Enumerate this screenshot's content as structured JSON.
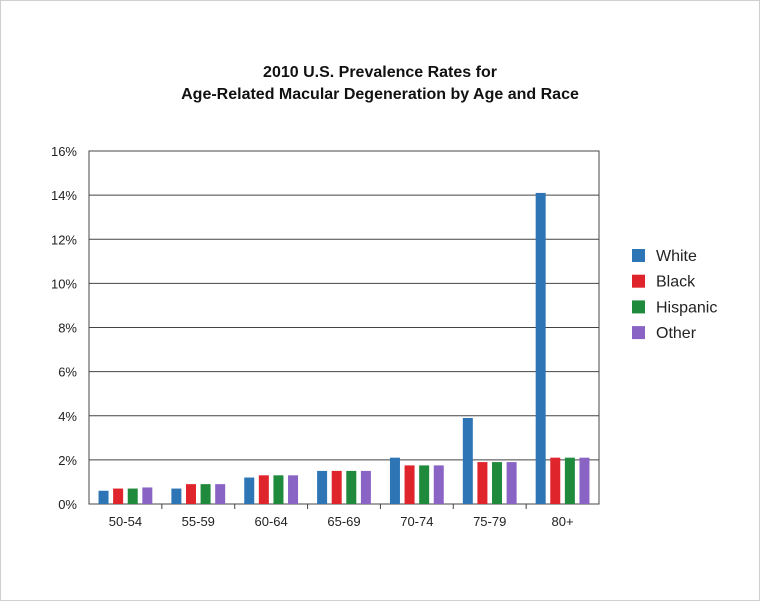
{
  "chart_data": {
    "type": "bar",
    "title_line1": "2010 U.S. Prevalence Rates for",
    "title_line2": "Age-Related Macular Degeneration by Age and Race",
    "xlabel": "",
    "ylabel": "",
    "categories": [
      "50-54",
      "55-59",
      "60-64",
      "65-69",
      "70-74",
      "75-79",
      "80+"
    ],
    "y_ticks": [
      "0%",
      "2%",
      "4%",
      "6%",
      "8%",
      "10%",
      "12%",
      "14%",
      "16%"
    ],
    "ylim": [
      0,
      16
    ],
    "grid": true,
    "legend_position": "right",
    "series": [
      {
        "name": "White",
        "color": "#2e75b6",
        "values": [
          0.6,
          0.7,
          1.2,
          1.5,
          2.1,
          3.9,
          14.1
        ]
      },
      {
        "name": "Black",
        "color": "#e0242c",
        "values": [
          0.7,
          0.9,
          1.3,
          1.5,
          1.75,
          1.9,
          2.1
        ]
      },
      {
        "name": "Hispanic",
        "color": "#1f8a3c",
        "values": [
          0.7,
          0.9,
          1.3,
          1.5,
          1.75,
          1.9,
          2.1
        ]
      },
      {
        "name": "Other",
        "color": "#8a64c4",
        "values": [
          0.75,
          0.9,
          1.3,
          1.5,
          1.75,
          1.9,
          2.1
        ]
      }
    ]
  }
}
